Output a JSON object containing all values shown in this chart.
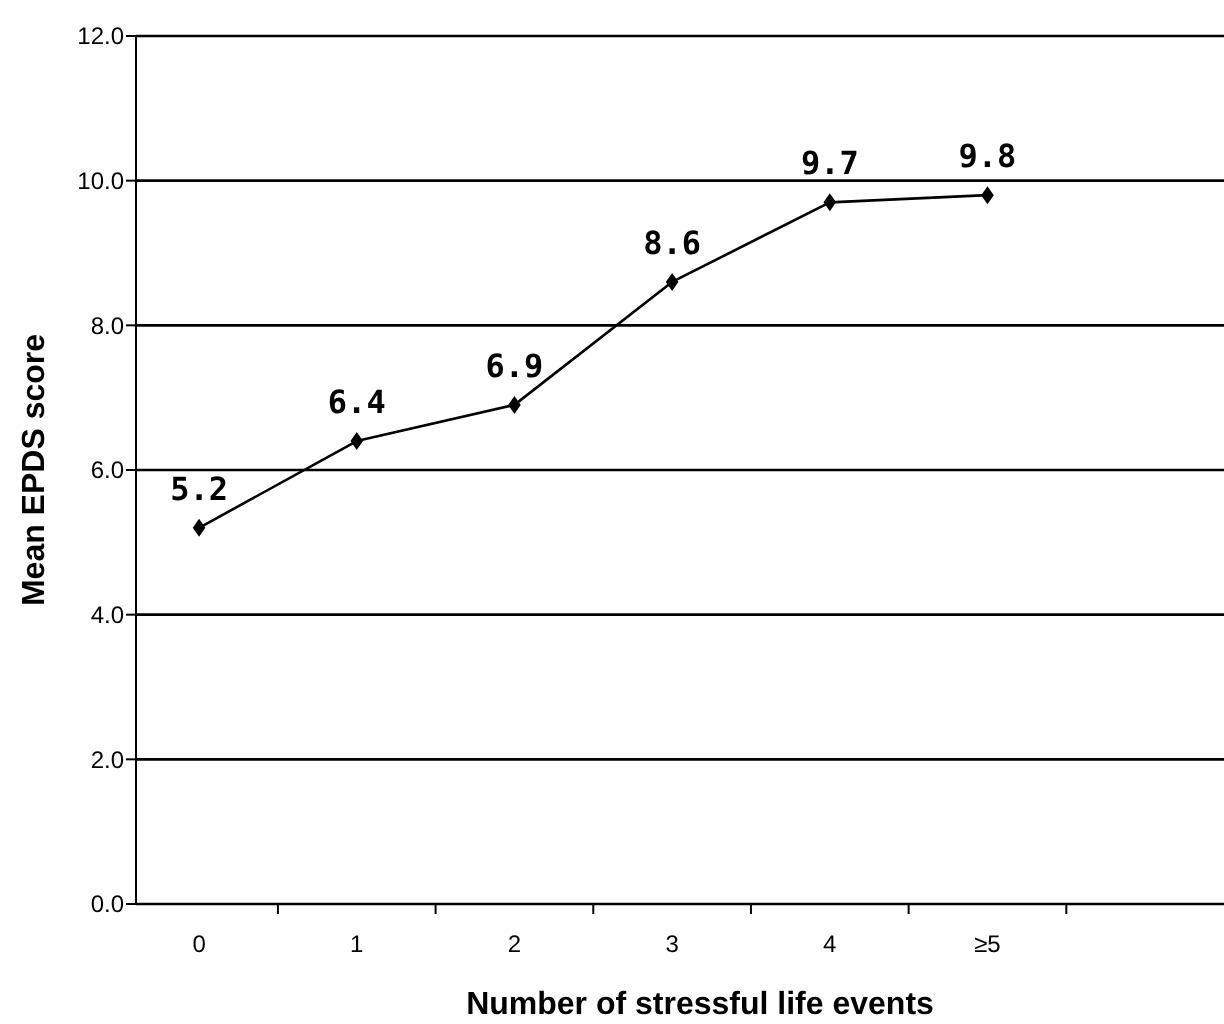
{
  "chart_data": {
    "type": "line",
    "xlabel": "Number of stressful life events",
    "ylabel": "Mean EPDS score",
    "categories": [
      "0",
      "1",
      "2",
      "3",
      "4",
      "≥5"
    ],
    "series": [
      {
        "color": "#000000",
        "values": [
          5.2,
          6.4,
          6.9,
          8.6,
          9.7,
          9.8
        ]
      }
    ],
    "ylim": [
      0,
      12
    ],
    "yticks": [
      {
        "value": 0,
        "label": "0.0"
      },
      {
        "value": 2,
        "label": "2.0"
      },
      {
        "value": 4,
        "label": "4.0"
      },
      {
        "value": 6,
        "label": "6.0"
      },
      {
        "value": 8,
        "label": "8.0"
      },
      {
        "value": 10,
        "label": "10.0"
      },
      {
        "value": 12,
        "label": "12.0"
      }
    ],
    "grid": "y",
    "marker": "diamond",
    "line_style": "solid",
    "data_labels": true
  }
}
